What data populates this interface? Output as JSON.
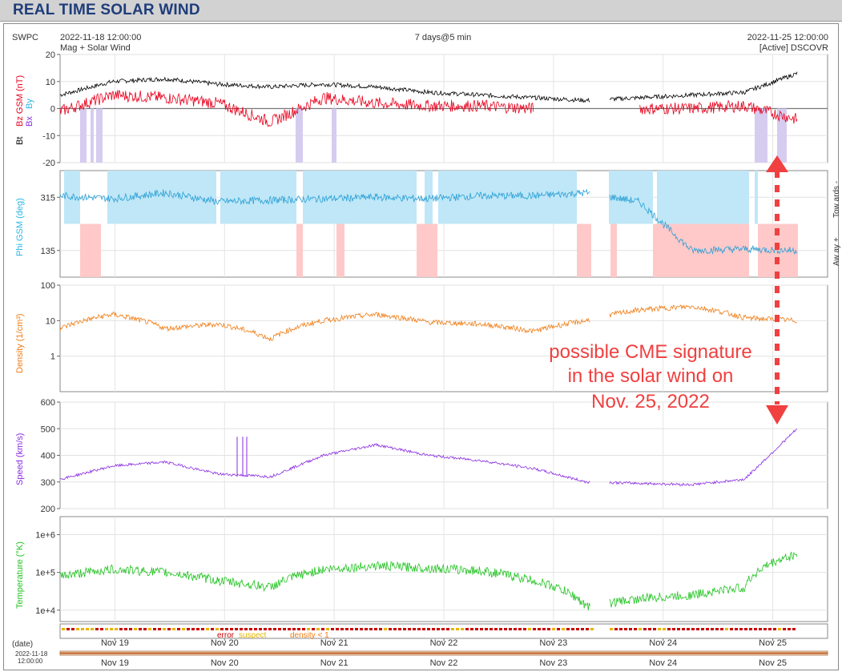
{
  "page": {
    "title": "REAL TIME SOLAR WIND"
  },
  "header": {
    "agency": "SWPC",
    "start_time": "2022-11-18 12:00:00",
    "subtitle": "Mag + Solar Wind",
    "span": "7 days@5 min",
    "end_time": "2022-11-25 12:00:00",
    "source": "[Active] DSCOVR"
  },
  "annotation": {
    "lines": [
      "possible CME signature",
      "in the solar wind on",
      "Nov. 25, 2022"
    ]
  },
  "colors": {
    "bt": "#000000",
    "bz": "#e8001c",
    "bx": "#8a2be2",
    "by": "#2ab6e6",
    "phi": "#2a9fd6",
    "towards_fill": "#bfe7f7",
    "away_fill": "#ffc9c9",
    "bz_neg_fill": "#d6ccf0",
    "density": "#f07d14",
    "speed": "#8a2be2",
    "temperature": "#22c322",
    "error": "#c80000",
    "suspect": "#e6b400",
    "density_lt1": "#f07d14",
    "annotation": "#f04040"
  },
  "legend": {
    "error": "error",
    "suspect": "suspect",
    "density": "density < 1"
  },
  "date_label": "(date)",
  "range_date": "2022-11-18",
  "range_time": "12:00:00",
  "chart_data": [
    {
      "type": "line",
      "panel": "magnetic",
      "ylabel_parts": [
        "Bt",
        "Bz GSM (nT)",
        "Bx",
        "By"
      ],
      "ylim": [
        -20,
        20
      ],
      "yticks": [
        "20",
        "10",
        "0",
        "-10",
        "-20"
      ],
      "x": [
        "Nov 18 12:00",
        "Nov 19 00:00",
        "Nov 19 12:00",
        "Nov 20 00:00",
        "Nov 20 12:00",
        "Nov 21 00:00",
        "Nov 21 12:00",
        "Nov 22 00:00",
        "Nov 22 12:00",
        "Nov 23 00:00",
        "Nov 23 12:00",
        "Nov 24 00:00",
        "Nov 24 12:00",
        "Nov 25 00:00",
        "Nov 25 12:00"
      ],
      "series": [
        {
          "name": "Bt",
          "values": [
            5,
            10,
            11,
            9,
            8,
            9,
            8,
            6,
            5,
            4,
            3,
            4,
            5,
            6,
            13
          ]
        },
        {
          "name": "Bz GSM",
          "values": [
            -1,
            5,
            4,
            2,
            -5,
            4,
            2,
            1,
            1,
            0,
            null,
            0,
            0,
            1,
            -4
          ]
        }
      ],
      "grid": true
    },
    {
      "type": "scatter",
      "panel": "phi",
      "ylabel": "Phi GSM (deg)",
      "ylim": [
        45,
        405
      ],
      "yticks": [
        "315",
        "135"
      ],
      "right_labels": [
        "Tow ards -",
        "Aw ay +"
      ],
      "x": [
        "Nov 18 12:00",
        "Nov 19 00:00",
        "Nov 19 12:00",
        "Nov 20 00:00",
        "Nov 20 12:00",
        "Nov 21 00:00",
        "Nov 21 12:00",
        "Nov 22 00:00",
        "Nov 22 12:00",
        "Nov 23 00:00",
        "Nov 23 12:00",
        "Nov 24 00:00",
        "Nov 24 12:00",
        "Nov 25 00:00",
        "Nov 25 12:00"
      ],
      "series": [
        {
          "name": "Phi GSM",
          "values": [
            320,
            310,
            330,
            300,
            305,
            310,
            315,
            310,
            320,
            320,
            330,
            300,
            135,
            140,
            135
          ]
        }
      ]
    },
    {
      "type": "line",
      "panel": "density",
      "ylabel": "Density (1/cm³)",
      "scale": "log",
      "ylim": [
        0.1,
        100
      ],
      "yticks": [
        "100",
        "10",
        "1"
      ],
      "x": [
        "Nov 18 12:00",
        "Nov 19 00:00",
        "Nov 19 12:00",
        "Nov 20 00:00",
        "Nov 20 12:00",
        "Nov 21 00:00",
        "Nov 21 12:00",
        "Nov 22 00:00",
        "Nov 22 12:00",
        "Nov 23 00:00",
        "Nov 23 12:00",
        "Nov 24 00:00",
        "Nov 24 12:00",
        "Nov 25 00:00",
        "Nov 25 12:00"
      ],
      "series": [
        {
          "name": "Density",
          "values": [
            6,
            15,
            6,
            8,
            3,
            10,
            15,
            9,
            8,
            5,
            10,
            20,
            25,
            12,
            10
          ]
        }
      ],
      "grid": true
    },
    {
      "type": "line",
      "panel": "speed",
      "ylabel": "Speed (km/s)",
      "ylim": [
        200,
        600
      ],
      "yticks": [
        "600",
        "500",
        "400",
        "300",
        "200"
      ],
      "x": [
        "Nov 18 12:00",
        "Nov 19 00:00",
        "Nov 19 12:00",
        "Nov 20 00:00",
        "Nov 20 12:00",
        "Nov 21 00:00",
        "Nov 21 12:00",
        "Nov 22 00:00",
        "Nov 22 12:00",
        "Nov 23 00:00",
        "Nov 23 12:00",
        "Nov 24 00:00",
        "Nov 24 12:00",
        "Nov 25 00:00",
        "Nov 25 12:00"
      ],
      "series": [
        {
          "name": "Speed",
          "values": [
            310,
            360,
            375,
            330,
            320,
            400,
            440,
            400,
            380,
            350,
            300,
            295,
            290,
            310,
            500
          ]
        }
      ],
      "grid": true
    },
    {
      "type": "line",
      "panel": "temperature",
      "ylabel": "Temperature (°K)",
      "scale": "log",
      "ylim": [
        5000,
        3000000
      ],
      "yticks": [
        "1e+6",
        "1e+5",
        "1e+4"
      ],
      "x": [
        "Nov 18 12:00",
        "Nov 19 00:00",
        "Nov 19 12:00",
        "Nov 20 00:00",
        "Nov 20 12:00",
        "Nov 21 00:00",
        "Nov 21 12:00",
        "Nov 22 00:00",
        "Nov 22 12:00",
        "Nov 23 00:00",
        "Nov 23 12:00",
        "Nov 24 00:00",
        "Nov 24 12:00",
        "Nov 25 00:00",
        "Nov 25 12:00"
      ],
      "series": [
        {
          "name": "Temperature",
          "values": [
            80000,
            120000,
            100000,
            60000,
            40000,
            120000,
            150000,
            130000,
            110000,
            60000,
            12000,
            20000,
            25000,
            40000,
            300000
          ]
        }
      ],
      "grid": true
    }
  ],
  "xaxis_labels": [
    "Nov 19",
    "Nov 20",
    "Nov 21",
    "Nov 22",
    "Nov 23",
    "Nov 24",
    "Nov 25"
  ]
}
